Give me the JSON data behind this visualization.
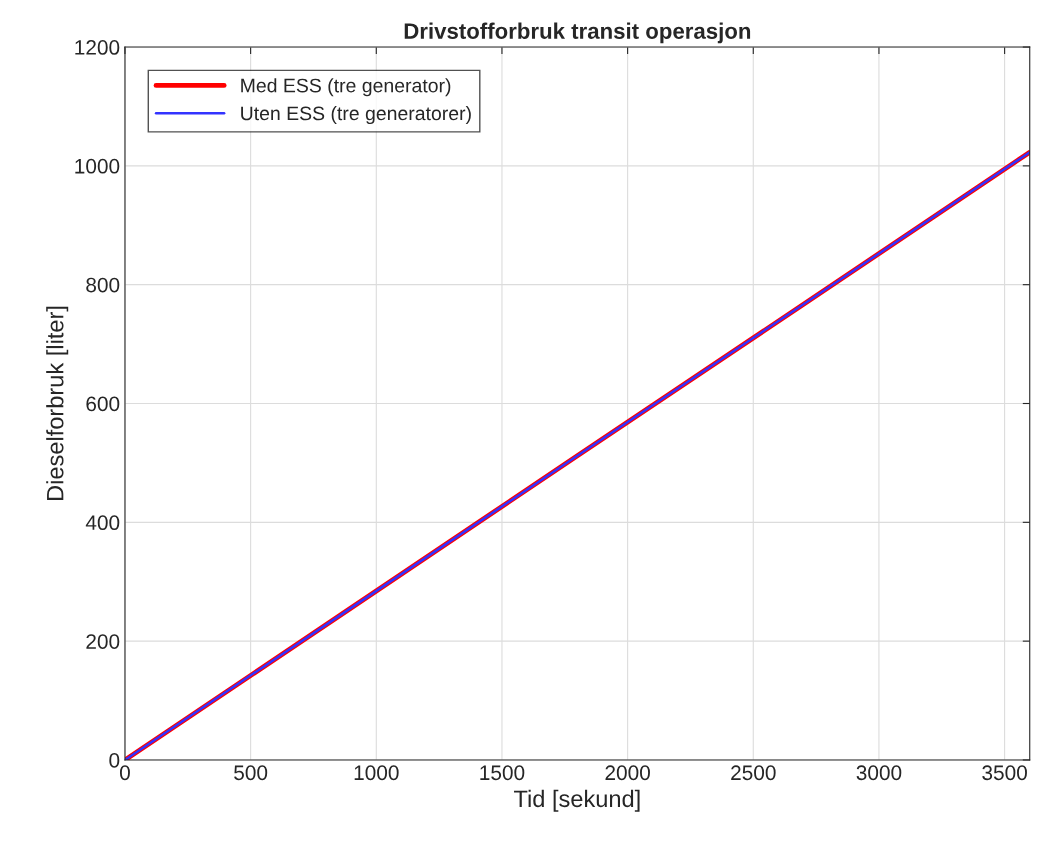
{
  "chart_data": {
    "type": "line",
    "title": "Drivstofforbruk transit operasjon",
    "xlabel": "Tid [sekund]",
    "ylabel": "Dieselforbruk [liter]",
    "x": [
      0,
      900,
      1800,
      2700,
      3600
    ],
    "series": [
      {
        "name": "Med ESS (tre generator)",
        "color": "#ff0000",
        "values": [
          0,
          256,
          512,
          767,
          1023
        ]
      },
      {
        "name": "Uten ESS (tre generatorer)",
        "color": "#3333ff",
        "values": [
          0,
          256,
          512,
          767,
          1023
        ]
      }
    ],
    "xlim": [
      0,
      3600
    ],
    "xticks": [
      0,
      500,
      1000,
      1500,
      2000,
      2500,
      3000,
      3500
    ],
    "ylim": [
      0,
      1200
    ],
    "yticks": [
      0,
      200,
      400,
      600,
      800,
      1000,
      1200
    ],
    "grid": true,
    "legend": "top left",
    "line_style": "solid"
  }
}
